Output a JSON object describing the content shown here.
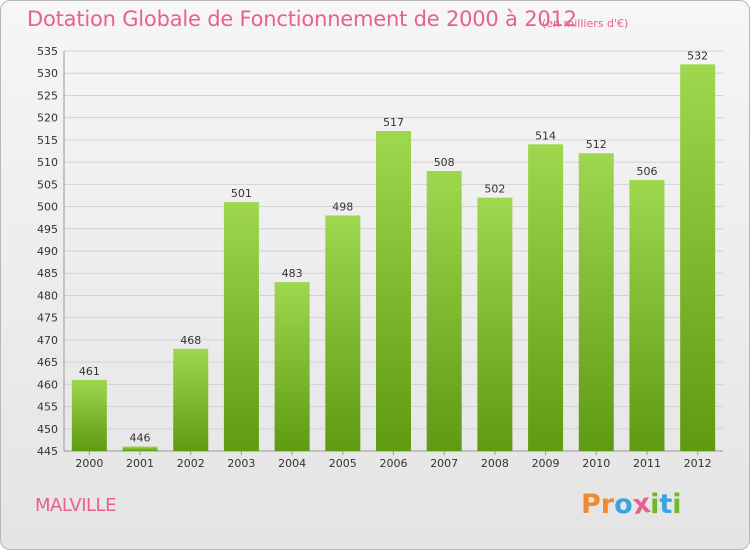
{
  "title": "Dotation Globale de Fonctionnement de 2000 à 2012",
  "unit": "(en milliers d'€)",
  "commune": "MALVILLE",
  "logo": {
    "letters": [
      "P",
      "r",
      "o",
      "x",
      "i",
      "t",
      "i"
    ]
  },
  "colors": {
    "title": "#e8618c",
    "bar_top": "#9fd84f",
    "bar_bottom": "#5e9a12",
    "logo": [
      "#f08a2c",
      "#f08a2c",
      "#3ba3e0",
      "#e8618c",
      "#6fb82a",
      "#3ba3e0",
      "#6fb82a"
    ]
  },
  "chart_data": {
    "type": "bar",
    "categories": [
      "2000",
      "2001",
      "2002",
      "2003",
      "2004",
      "2005",
      "2006",
      "2007",
      "2008",
      "2009",
      "2010",
      "2011",
      "2012"
    ],
    "values": [
      461,
      446,
      468,
      501,
      483,
      498,
      517,
      508,
      502,
      514,
      512,
      506,
      532
    ],
    "title": "Dotation Globale de Fonctionnement de 2000 à 2012",
    "ylim": [
      445,
      535
    ],
    "yticks": [
      445,
      450,
      455,
      460,
      465,
      470,
      475,
      480,
      485,
      490,
      495,
      500,
      505,
      510,
      515,
      520,
      525,
      530,
      535
    ],
    "grid": true,
    "data_labels": true
  }
}
